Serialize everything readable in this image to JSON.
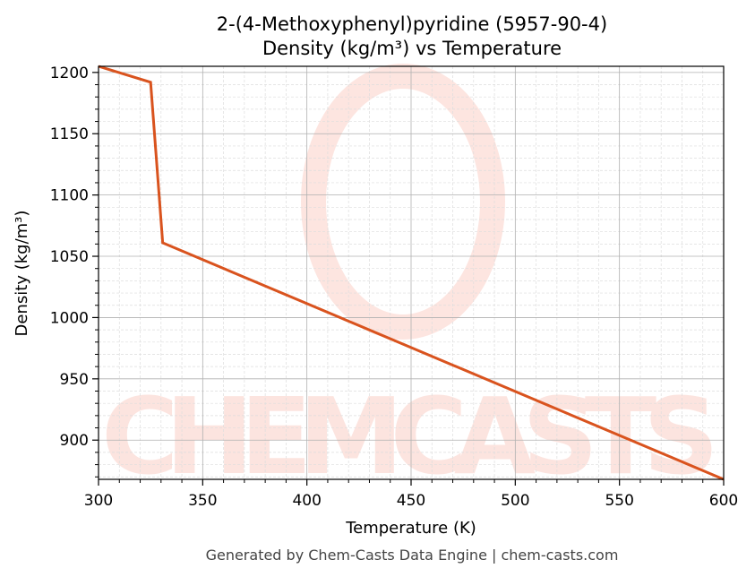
{
  "chart_data": {
    "type": "line",
    "title": "2-(4-Methoxyphenyl)pyridine (5957-90-4)",
    "subtitle": "Density (kg/m³) vs Temperature",
    "xlabel": "Temperature (K)",
    "ylabel": "Density (kg/m³)",
    "xlim": [
      300,
      600
    ],
    "ylim": [
      868,
      1205
    ],
    "xticks": [
      300,
      350,
      400,
      450,
      500,
      550,
      600
    ],
    "yticks": [
      900,
      950,
      1000,
      1050,
      1100,
      1150,
      1200
    ],
    "grid": true,
    "series": [
      {
        "name": "Density",
        "color": "#d9531e",
        "x": [
          300,
          325,
          330.8,
          600
        ],
        "y": [
          1205,
          1192,
          1061,
          868
        ]
      }
    ],
    "watermark": "CHEMCASTS",
    "footer": "Generated by Chem-Casts Data Engine | chem-casts.com"
  }
}
